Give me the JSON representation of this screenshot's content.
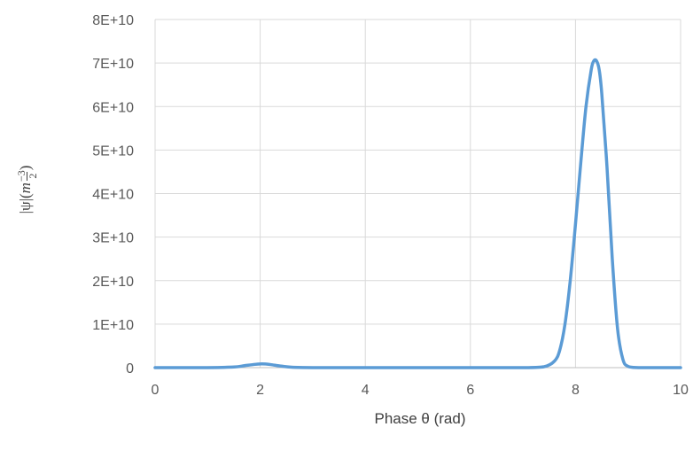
{
  "chart_data": {
    "type": "line",
    "title": "",
    "xlabel": "Phase θ (rad)",
    "ylabel": {
      "prefix": "|ψ|(",
      "variable": "m",
      "exponent_sign": "−",
      "exponent_numerator": "3",
      "exponent_denominator": "2",
      "suffix": ")"
    },
    "xlim": [
      0,
      10
    ],
    "ylim": [
      0,
      80000000000
    ],
    "x_ticks": [
      {
        "value": 0,
        "label": "0"
      },
      {
        "value": 2,
        "label": "2"
      },
      {
        "value": 4,
        "label": "4"
      },
      {
        "value": 6,
        "label": "6"
      },
      {
        "value": 8,
        "label": "8"
      },
      {
        "value": 10,
        "label": "10"
      }
    ],
    "y_ticks": [
      {
        "value": 0,
        "label": "0"
      },
      {
        "value": 10000000000,
        "label": "1E+10"
      },
      {
        "value": 20000000000,
        "label": "2E+10"
      },
      {
        "value": 30000000000,
        "label": "3E+10"
      },
      {
        "value": 40000000000,
        "label": "4E+10"
      },
      {
        "value": 50000000000,
        "label": "5E+10"
      },
      {
        "value": 60000000000,
        "label": "6E+10"
      },
      {
        "value": 70000000000,
        "label": "7E+10"
      },
      {
        "value": 80000000000,
        "label": "8E+10"
      }
    ],
    "grid": true,
    "legend": "none",
    "series": [
      {
        "color": "#5b9bd5",
        "x": [
          0,
          0.5,
          1.0,
          1.5,
          1.7,
          1.9,
          2.0,
          2.1,
          2.2,
          2.4,
          2.6,
          3.0,
          4.0,
          5.0,
          6.0,
          7.0,
          7.4,
          7.6,
          7.7,
          7.8,
          7.9,
          8.0,
          8.1,
          8.2,
          8.3,
          8.35,
          8.4,
          8.45,
          8.5,
          8.6,
          8.7,
          8.8,
          8.9,
          9.0,
          9.2,
          9.5,
          10.0
        ],
        "y": [
          0,
          0,
          10000000,
          150000000,
          450000000,
          750000000,
          850000000,
          830000000,
          700000000,
          350000000,
          100000000,
          10000000,
          0,
          0,
          0,
          0,
          200000000,
          1500000000,
          4000000000,
          10000000000,
          20000000000,
          33000000000,
          47000000000,
          60000000000,
          68500000000,
          70500000000,
          70500000000,
          68500000000,
          63000000000,
          46000000000,
          25000000000,
          9000000000,
          2000000000,
          300000000,
          0,
          0,
          0
        ]
      }
    ]
  }
}
